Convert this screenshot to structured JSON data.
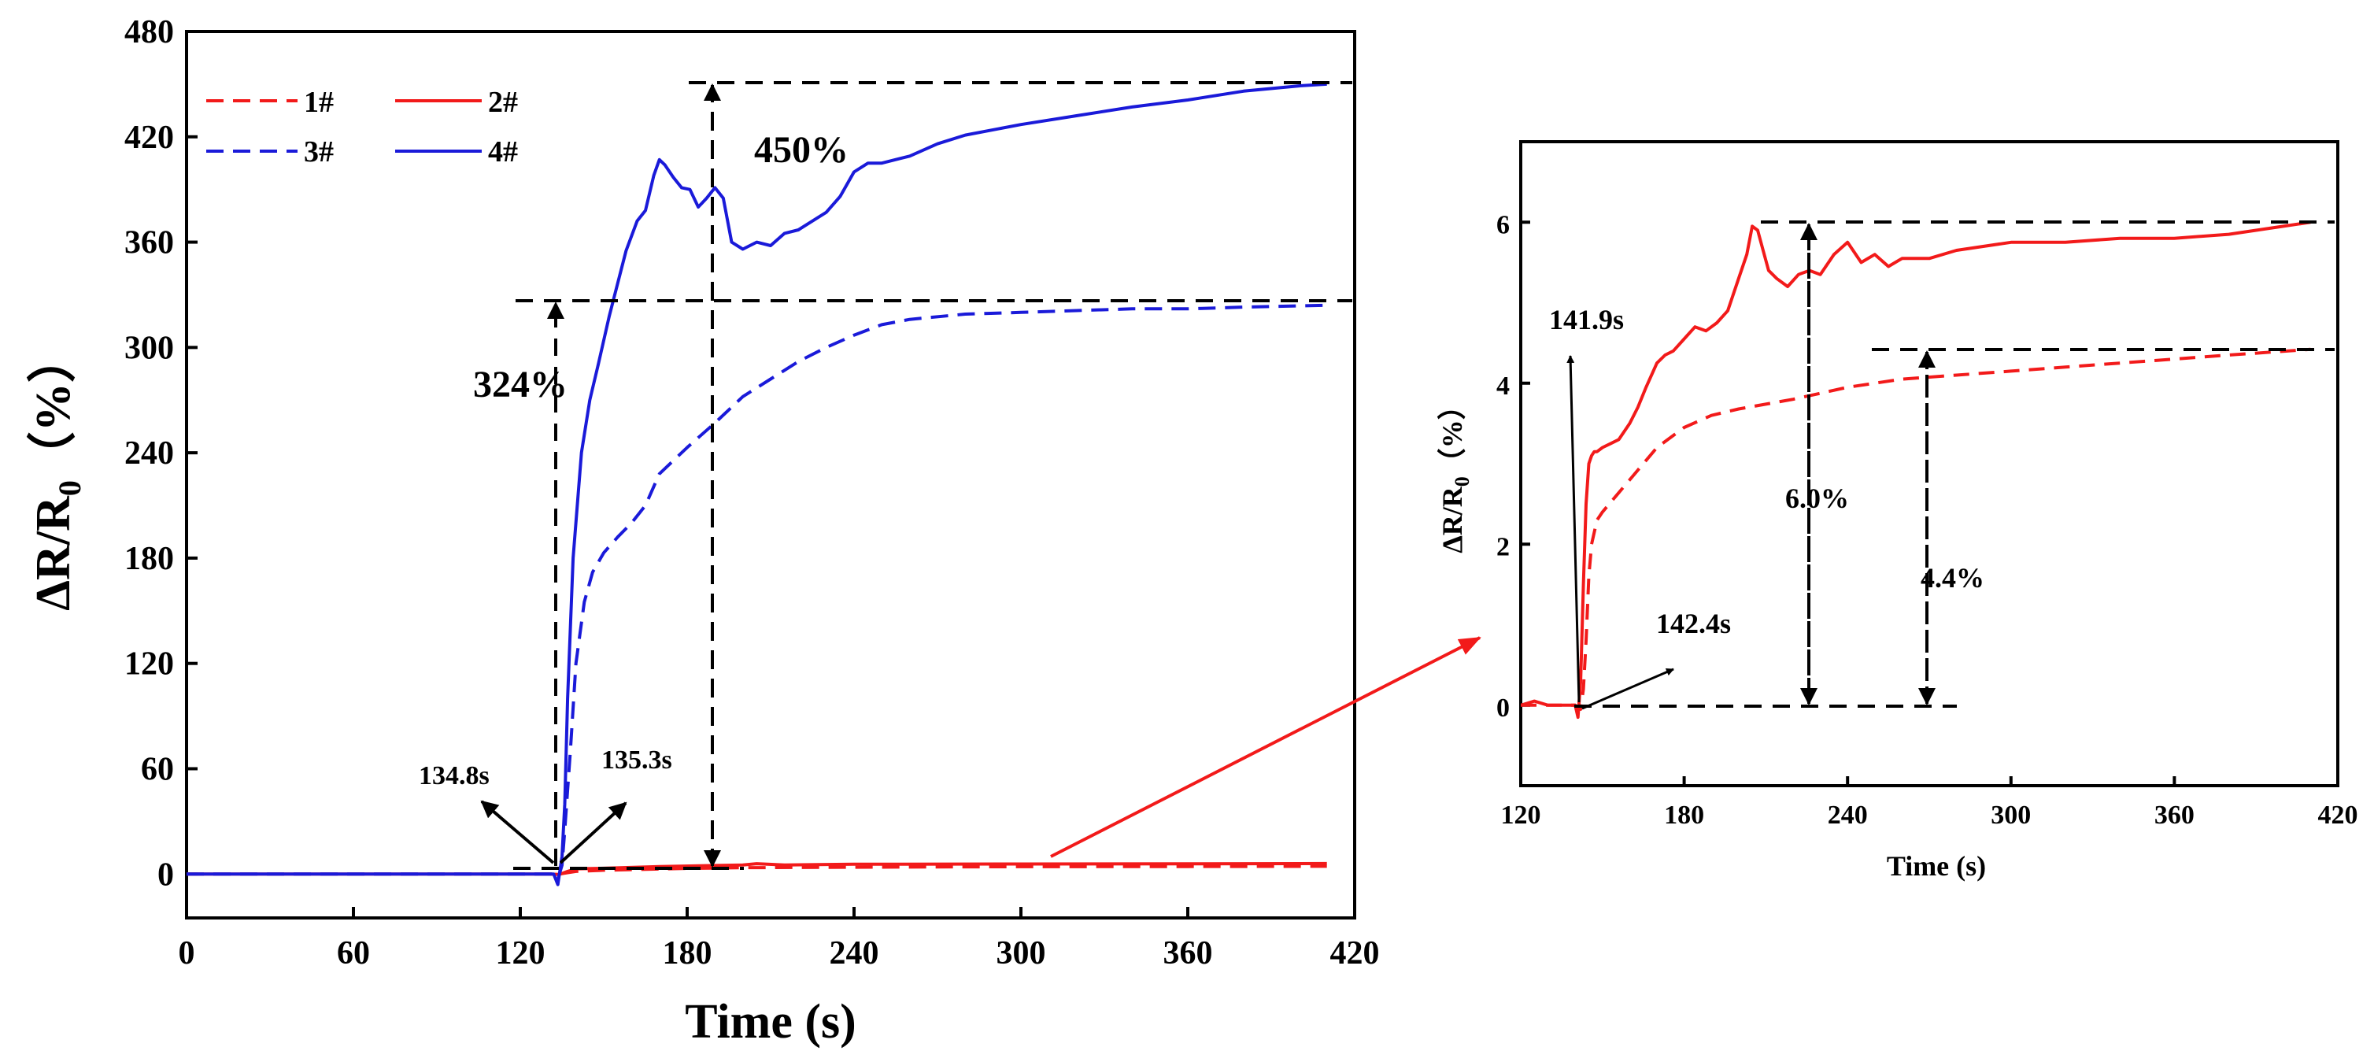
{
  "colors": {
    "red": "#f21a1a",
    "blue": "#1a1ad9",
    "black": "#000000"
  },
  "chart_data": [
    {
      "id": "main",
      "type": "line",
      "xlabel": "Time (s)",
      "ylabel_main": "ΔR/R",
      "ylabel_sub": "0",
      "ylabel_unit": "（%）",
      "xlim": [
        0,
        420
      ],
      "ylim": [
        -25,
        480
      ],
      "xticks": [
        0,
        60,
        120,
        180,
        240,
        300,
        360,
        420
      ],
      "yticks": [
        0,
        60,
        120,
        180,
        240,
        300,
        360,
        420,
        480
      ],
      "legend": [
        {
          "key": "s1",
          "label": "1#"
        },
        {
          "key": "s2",
          "label": "2#"
        },
        {
          "key": "s3",
          "label": "3#"
        },
        {
          "key": "s4",
          "label": "4#"
        }
      ],
      "series": [
        {
          "key": "s1",
          "name": "1#",
          "color": "red",
          "dash": true,
          "x": [
            0,
            130,
            134,
            137,
            140,
            150,
            180,
            200,
            240,
            300,
            360,
            410
          ],
          "y": [
            0,
            0,
            0,
            0.8,
            1.5,
            2.2,
            3.2,
            3.6,
            3.9,
            4.2,
            4.3,
            4.4
          ]
        },
        {
          "key": "s2",
          "name": "2#",
          "color": "red",
          "dash": false,
          "x": [
            0,
            130,
            134,
            137,
            140,
            150,
            170,
            200,
            205,
            215,
            240,
            300,
            360,
            410
          ],
          "y": [
            0,
            0,
            -0.2,
            1.5,
            3,
            3.3,
            4.3,
            5.2,
            5.9,
            5.2,
            5.6,
            5.7,
            5.8,
            6.0
          ]
        },
        {
          "key": "s3",
          "name": "3#",
          "color": "blue",
          "dash": true,
          "x": [
            0,
            132,
            133.5,
            135,
            136,
            138,
            140,
            143,
            146,
            150,
            155,
            160,
            165,
            170,
            180,
            190,
            200,
            210,
            220,
            230,
            240,
            250,
            260,
            280,
            300,
            320,
            340,
            360,
            380,
            410
          ],
          "y": [
            0,
            0,
            -3,
            5,
            25,
            70,
            120,
            155,
            172,
            183,
            192,
            200,
            210,
            228,
            243,
            257,
            272,
            282,
            292,
            300,
            307,
            313,
            316,
            319,
            320,
            321,
            322,
            322,
            323,
            324
          ]
        },
        {
          "key": "s4",
          "name": "4#",
          "color": "blue",
          "dash": false,
          "x": [
            0,
            132,
            133.5,
            135,
            136,
            137,
            139,
            142,
            145,
            148,
            152,
            158,
            162,
            165,
            168,
            170,
            172,
            175,
            178,
            181,
            184,
            187,
            190,
            193,
            196,
            200,
            205,
            210,
            215,
            220,
            225,
            230,
            235,
            240,
            245,
            250,
            260,
            270,
            280,
            300,
            320,
            340,
            360,
            380,
            400,
            410
          ],
          "y": [
            0,
            0,
            -6,
            10,
            40,
            100,
            180,
            240,
            270,
            290,
            318,
            355,
            372,
            378,
            398,
            407,
            404,
            397,
            391,
            390,
            380,
            385,
            391,
            385,
            360,
            356,
            360,
            358,
            365,
            367,
            372,
            377,
            386,
            400,
            405,
            405,
            409,
            416,
            421,
            427,
            432,
            437,
            441,
            446,
            449,
            450
          ]
        }
      ],
      "annotations": {
        "label_450": "450%",
        "label_324": "324%",
        "label_1348": "134.8s",
        "label_1353": "135.3s"
      }
    },
    {
      "id": "inset",
      "type": "line",
      "xlabel": "Time (s)",
      "ylabel_main": "ΔR/R",
      "ylabel_sub": "0",
      "ylabel_unit": "（%）",
      "xlim": [
        120,
        420
      ],
      "ylim": [
        -1,
        7
      ],
      "xticks": [
        120,
        180,
        240,
        300,
        360,
        420
      ],
      "yticks": [
        0,
        2,
        4,
        6
      ],
      "series": [
        {
          "key": "i1",
          "name": "1#",
          "color": "red",
          "dash": true,
          "x": [
            120,
            135,
            140,
            142,
            143,
            144,
            145,
            146,
            148,
            150,
            155,
            160,
            165,
            170,
            180,
            190,
            200,
            220,
            240,
            260,
            280,
            300,
            320,
            340,
            360,
            380,
            410
          ],
          "y": [
            0,
            0,
            0,
            -0.05,
            0.2,
            0.8,
            1.6,
            2.0,
            2.3,
            2.4,
            2.6,
            2.8,
            3.0,
            3.2,
            3.45,
            3.6,
            3.68,
            3.8,
            3.95,
            4.05,
            4.1,
            4.15,
            4.2,
            4.25,
            4.3,
            4.35,
            4.42
          ]
        },
        {
          "key": "i2",
          "name": "2#",
          "color": "red",
          "dash": false,
          "x": [
            120,
            125,
            130,
            135,
            140,
            141,
            142,
            143,
            144,
            145,
            146,
            147,
            148,
            150,
            153,
            156,
            160,
            163,
            166,
            170,
            173,
            176,
            180,
            184,
            188,
            192,
            196,
            200,
            203,
            205,
            207,
            209,
            211,
            214,
            218,
            222,
            226,
            230,
            235,
            240,
            245,
            250,
            255,
            260,
            270,
            280,
            300,
            320,
            340,
            360,
            380,
            400,
            410
          ],
          "y": [
            0,
            0.05,
            0,
            0,
            0,
            -0.15,
            0.3,
            1.5,
            2.5,
            3.0,
            3.1,
            3.15,
            3.15,
            3.2,
            3.25,
            3.3,
            3.5,
            3.7,
            3.95,
            4.25,
            4.35,
            4.4,
            4.55,
            4.7,
            4.65,
            4.75,
            4.9,
            5.3,
            5.6,
            5.95,
            5.9,
            5.65,
            5.4,
            5.3,
            5.2,
            5.35,
            5.4,
            5.35,
            5.6,
            5.75,
            5.5,
            5.6,
            5.45,
            5.55,
            5.55,
            5.65,
            5.75,
            5.75,
            5.8,
            5.8,
            5.85,
            5.95,
            6.0
          ]
        }
      ],
      "annotations": {
        "label_1419": "141.9s",
        "label_1424": "142.4s",
        "label_60": "6.0%",
        "label_44": "4.4%"
      }
    }
  ]
}
